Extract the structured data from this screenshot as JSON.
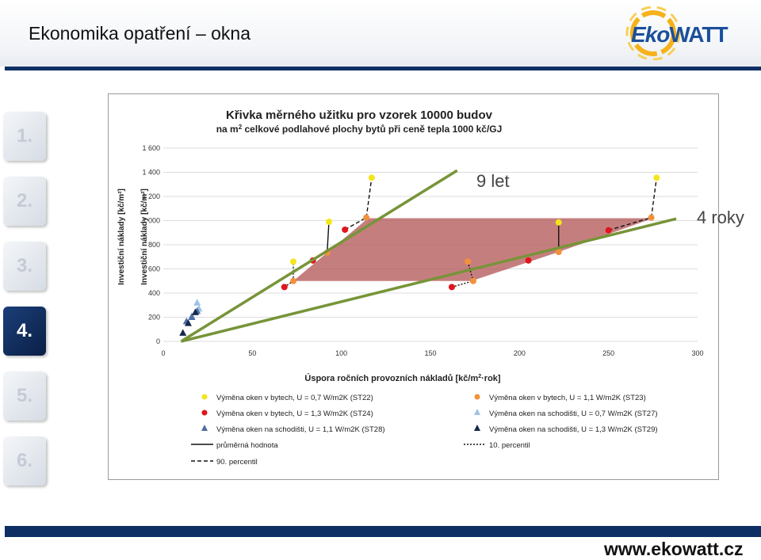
{
  "page_title": "Ekonomika opatření – okna",
  "logo": {
    "part1": "Eko",
    "part2": "WATT"
  },
  "nav": [
    {
      "label": "1.",
      "active": false
    },
    {
      "label": "2.",
      "active": false
    },
    {
      "label": "3.",
      "active": false
    },
    {
      "label": "4.",
      "active": true
    },
    {
      "label": "5.",
      "active": false
    },
    {
      "label": "6.",
      "active": false
    }
  ],
  "annotations": {
    "line1": "9 let",
    "line2": "4 roky"
  },
  "footer_url": "www.ekowatt.cz",
  "chart_data": {
    "type": "scatter",
    "title": "Křivka měrného užitku pro vzorek 10000 budov",
    "subtitle_pre": "na m",
    "subtitle_sup": "2",
    "subtitle_post": " celkové podlahové plochy bytů při ceně tepla 1000 kč/GJ",
    "ylabel_outer": "Investiční náklady [kč/m²]",
    "ylabel_inner": "Investiční náklady [kč/m²]",
    "xlabel_pre": "Úspora ročních provozních nákladů [kč/m",
    "xlabel_sup": "2",
    "xlabel_post": "·rok]",
    "xlim": [
      0,
      300
    ],
    "ylim": [
      0,
      1600
    ],
    "xticks": [
      0,
      50,
      100,
      150,
      200,
      250,
      300
    ],
    "yticks": [
      0,
      200,
      400,
      600,
      800,
      1000,
      1200,
      1400,
      1600
    ],
    "ytick_labels": [
      "0",
      "200",
      "400",
      "600",
      "800",
      "1 000",
      "1 200",
      "1 400",
      "1 600"
    ],
    "grid": true,
    "legend_position": "bottom",
    "colors": {
      "ST22": "#f2e51c",
      "ST23": "#f3913a",
      "ST24": "#e3141b",
      "ST27": "#9cc3e4",
      "ST28": "#4f6fa1",
      "ST29": "#18294c",
      "line": "#779438",
      "band": "#b55a5a"
    },
    "band": [
      [
        73,
        500
      ],
      [
        115,
        1020
      ],
      [
        275,
        1020
      ],
      [
        222,
        740
      ],
      [
        173,
        500
      ]
    ],
    "series": [
      {
        "name": "Výměna oken v bytech, U = 0,7 W/m2K (ST22)",
        "key": "ST22",
        "marker": "circle",
        "points": [
          [
            73,
            660
          ],
          [
            93,
            990
          ],
          [
            117,
            1355
          ],
          [
            222,
            985
          ],
          [
            277,
            1355
          ]
        ]
      },
      {
        "name": "Výměna oken v bytech, U = 1,1 W/m2K (ST23)",
        "key": "ST23",
        "marker": "circle",
        "points": [
          [
            73,
            500
          ],
          [
            92,
            735
          ],
          [
            114,
            1025
          ],
          [
            171,
            660
          ],
          [
            174,
            500
          ],
          [
            222,
            740
          ],
          [
            274,
            1025
          ]
        ]
      },
      {
        "name": "Výměna oken v bytech, U = 1,3 W/m2K (ST24)",
        "key": "ST24",
        "marker": "circle",
        "points": [
          [
            68,
            450
          ],
          [
            84,
            670
          ],
          [
            102,
            925
          ],
          [
            162,
            450
          ],
          [
            205,
            670
          ],
          [
            250,
            920
          ]
        ]
      },
      {
        "name": "Výměna oken na schodišti, U = 0,7 W/m2K (ST27)",
        "key": "ST27",
        "marker": "triangle",
        "points": [
          [
            16,
            210
          ],
          [
            19,
            320
          ],
          [
            20,
            270
          ]
        ]
      },
      {
        "name": "Výměna oken na schodišti, U = 1,1 W/m2K (ST28)",
        "key": "ST28",
        "marker": "triangle",
        "points": [
          [
            13,
            165
          ],
          [
            16,
            200
          ],
          [
            19,
            250
          ]
        ]
      },
      {
        "name": "Výměna oken na schodišti, U = 1,3 W/m2K (ST29)",
        "key": "ST29",
        "marker": "triangle",
        "points": [
          [
            11,
            70
          ],
          [
            14,
            150
          ],
          [
            18,
            240
          ]
        ]
      }
    ],
    "lines": [
      {
        "name": "průměrná hodnota",
        "style": "solid",
        "segments": [
          [
            [
              92,
              735
            ],
            [
              93,
              990
            ]
          ],
          [
            [
              222,
              740
            ],
            [
              222,
              985
            ]
          ]
        ]
      },
      {
        "name": "90. percentil",
        "style": "dashed",
        "segments": [
          [
            [
              114,
              1025
            ],
            [
              117,
              1355
            ]
          ],
          [
            [
              274,
              1025
            ],
            [
              277,
              1355
            ]
          ],
          [
            [
              102,
              925
            ],
            [
              114,
              1025
            ]
          ],
          [
            [
              250,
              920
            ],
            [
              274,
              1025
            ]
          ]
        ]
      },
      {
        "name": "10. percentil",
        "style": "dotted",
        "segments": [
          [
            [
              68,
              450
            ],
            [
              73,
              500
            ]
          ],
          [
            [
              73,
              500
            ],
            [
              73,
              660
            ]
          ],
          [
            [
              162,
              450
            ],
            [
              174,
              500
            ]
          ],
          [
            [
              171,
              660
            ],
            [
              174,
              500
            ]
          ]
        ]
      }
    ],
    "trend_lines": [
      {
        "label_key": "line1",
        "from": [
          10,
          0
        ],
        "to": [
          165,
          1415
        ]
      },
      {
        "label_key": "line2",
        "from": [
          10,
          0
        ],
        "to": [
          288,
          1015
        ]
      }
    ]
  }
}
